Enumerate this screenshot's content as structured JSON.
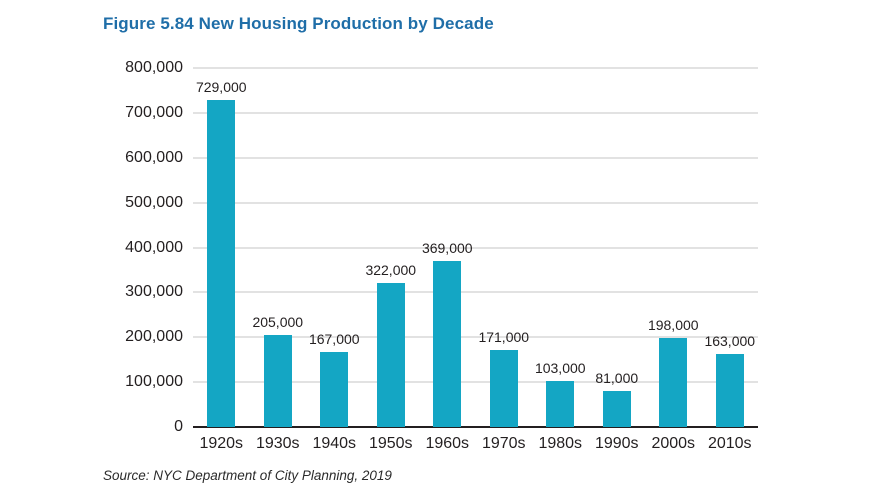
{
  "colors": {
    "title_blue": "#1f6ea8",
    "bar_teal": "#14a6c4",
    "gridline_gray": "#e2e2e2",
    "axis_black": "#231f20",
    "label_black": "#231f20"
  },
  "chart_data": {
    "type": "bar",
    "title": "Figure 5.84 New Housing Production by Decade",
    "categories": [
      "1920s",
      "1930s",
      "1940s",
      "1950s",
      "1960s",
      "1970s",
      "1980s",
      "1990s",
      "2000s",
      "2010s"
    ],
    "values": [
      729000,
      205000,
      167000,
      322000,
      369000,
      171000,
      103000,
      81000,
      198000,
      163000
    ],
    "value_labels": [
      "729,000",
      "205,000",
      "167,000",
      "322,000",
      "369,000",
      "171,000",
      "103,000",
      "81,000",
      "198,000",
      "163,000"
    ],
    "yticks": [
      "800,000",
      "700,000",
      "600,000",
      "500,000",
      "400,000",
      "300,000",
      "200,000",
      "100,000",
      "0"
    ],
    "ylim": [
      0,
      800000
    ],
    "xlabel": "",
    "ylabel": "",
    "grid": true,
    "legend": "none",
    "source": "Source: NYC Department of City Planning, 2019"
  }
}
